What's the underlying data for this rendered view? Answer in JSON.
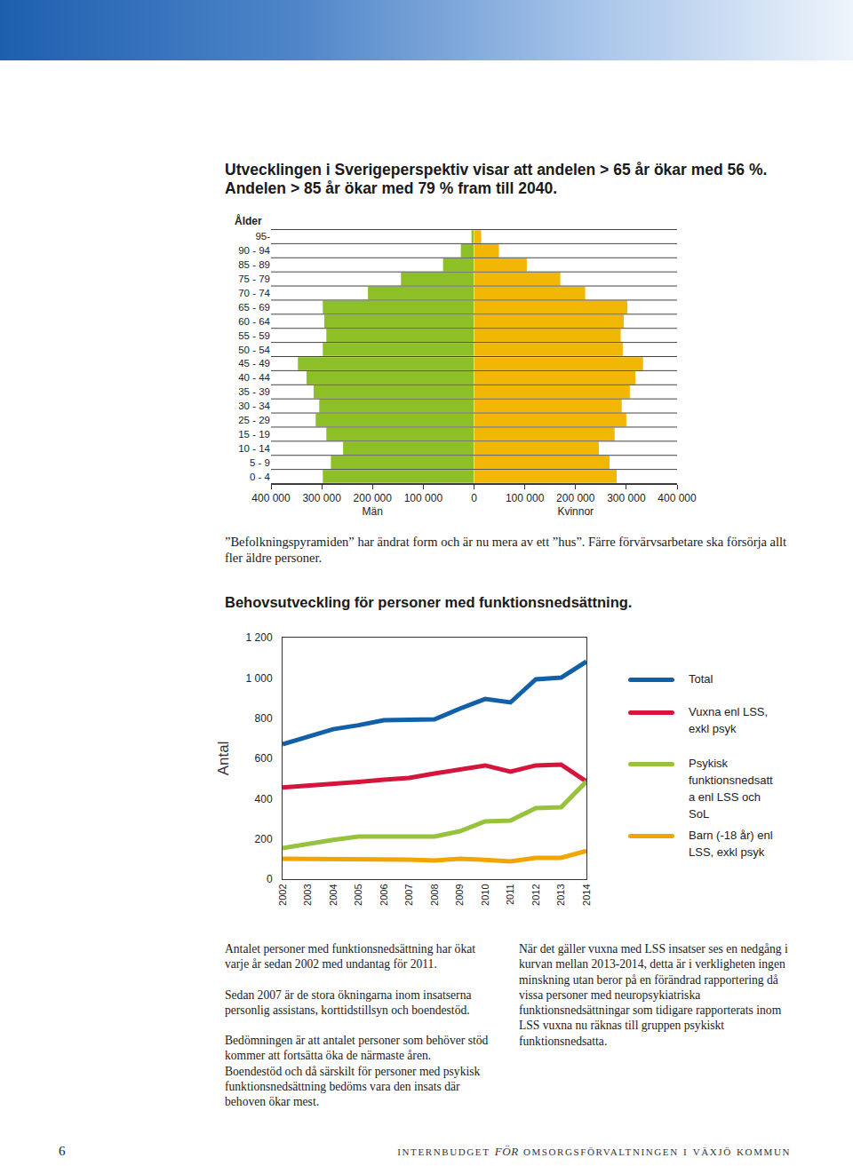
{
  "document": {
    "heading": [
      "Utvecklingen i Sverigeperspektiv visar att andelen > 65 år ökar med 56 %.",
      "Andelen > 85 år ökar med 79 % fram till 2040."
    ],
    "caption": "”Befolkningspyramiden” har ändrat form och är nu mera av ett ”hus”. Färre förvärvsarbetare ska försörja allt fler äldre personer.",
    "left_column": [
      [
        "Antalet personer med funktionsnedsättning har ökat varje år sedan 2002 med undantag för 2011."
      ],
      [
        "Sedan 2007 är de stora ökningarna inom insatserna personlig assistans, korttidstillsyn och boendestöd."
      ],
      [
        "Bedömningen är att antalet personer som behöver stöd kommer att fortsätta öka de närmaste åren.",
        "Boendestöd och då särskilt för personer med psykisk funktionsnedsättning bedöms vara den insats där behoven ökar mest."
      ]
    ],
    "right_column": [
      [
        "När det gäller vuxna med LSS insatser ses en nedgång i kurvan mellan 2013-2014, detta är i verkligheten ingen minskning utan beror på en förändrad rapportering då vissa personer med neuropsykiatriska funktionsnedsättningar som tidigare rapporterats inom LSS vuxna nu räknas till gruppen psykiskt funktionsnedsatta."
      ]
    ],
    "footer": {
      "page": "6",
      "before": "internbudget",
      "italic": "för",
      "after": "omsorgsförvaltningen i växjö kommun"
    }
  },
  "chart_data": [
    {
      "type": "bar",
      "orientation": "horizontal",
      "y_label": "Ålder",
      "grid": true,
      "categories": [
        "95-",
        "90 - 94",
        "85 - 89",
        "75 - 79",
        "70 - 74",
        "65 - 69",
        "60 - 64",
        "55 - 59",
        "50 - 54",
        "45 - 49",
        "40 - 44",
        "35 - 39",
        "30 - 34",
        "25 - 29",
        "15 - 19",
        "10 - 14",
        "5 - 9",
        "0 - 4"
      ],
      "series": [
        {
          "name": "Män",
          "color": "#8cc026",
          "values": [
            5000,
            26000,
            61000,
            144000,
            209000,
            298000,
            295000,
            291000,
            298000,
            347000,
            330000,
            316000,
            305000,
            312000,
            291000,
            258000,
            282000,
            298000
          ],
          "xlim": [
            400000,
            0
          ],
          "xticks": [
            {
              "value": 400000,
              "label": "400 000"
            },
            {
              "value": 300000,
              "label": "300 000"
            },
            {
              "value": 200000,
              "label": "200 000"
            },
            {
              "value": 100000,
              "label": "100 000"
            }
          ]
        },
        {
          "name": "Kvinnor",
          "color": "#f2b705",
          "values": [
            14000,
            49000,
            104000,
            170000,
            219000,
            302000,
            295000,
            289000,
            293000,
            333000,
            318000,
            307000,
            291000,
            300000,
            277000,
            246000,
            267000,
            281000
          ],
          "xlim": [
            0,
            400000
          ],
          "xticks": [
            0,
            {
              "value": 100000,
              "label": "100 000"
            },
            {
              "value": 200000,
              "label": "200 000"
            },
            {
              "value": 300000,
              "label": "300 000"
            },
            {
              "value": 400000,
              "label": "400 000"
            }
          ]
        }
      ]
    },
    {
      "type": "line",
      "title": "Behovsutveckling för personer med funktionsnedsättning.",
      "y_label": "Antal",
      "legend": "right",
      "grid": false,
      "categories": [
        "2002",
        "2003",
        "2004",
        "2005",
        "2006",
        "2007",
        "2008",
        "2009",
        "2010",
        "2011",
        "2012",
        "2013",
        "2014"
      ],
      "ylim": [
        0,
        1200
      ],
      "yticks": [
        0,
        200,
        400,
        600,
        800,
        {
          "value": 1000,
          "label": "1 000"
        },
        {
          "value": 1200,
          "label": "1 200"
        }
      ],
      "series": [
        {
          "name": "Total",
          "color": "#1160a8",
          "values": [
            670,
            710,
            745,
            765,
            790,
            792,
            794,
            847,
            895,
            878,
            993,
            1001,
            1081
          ]
        },
        {
          "name": "Vuxna enl LSS, exkl psyk",
          "color": "#d4163c",
          "values": [
            455,
            463,
            472,
            483,
            494,
            503,
            525,
            547,
            565,
            534,
            565,
            569,
            485
          ]
        },
        {
          "name": "Psykisk funktionsnedsatta enl LSS och SoL",
          "color": "#97c23c",
          "values": [
            154,
            176,
            195,
            212,
            212,
            212,
            212,
            238,
            287,
            291,
            353,
            357,
            485
          ]
        },
        {
          "name": "Barn (-18 år) enl LSS, exkl psyk",
          "color": "#f0a500",
          "values": [
            101,
            101,
            97,
            97,
            97,
            97,
            93,
            101,
            96,
            88,
            106,
            106,
            141
          ]
        }
      ]
    }
  ]
}
